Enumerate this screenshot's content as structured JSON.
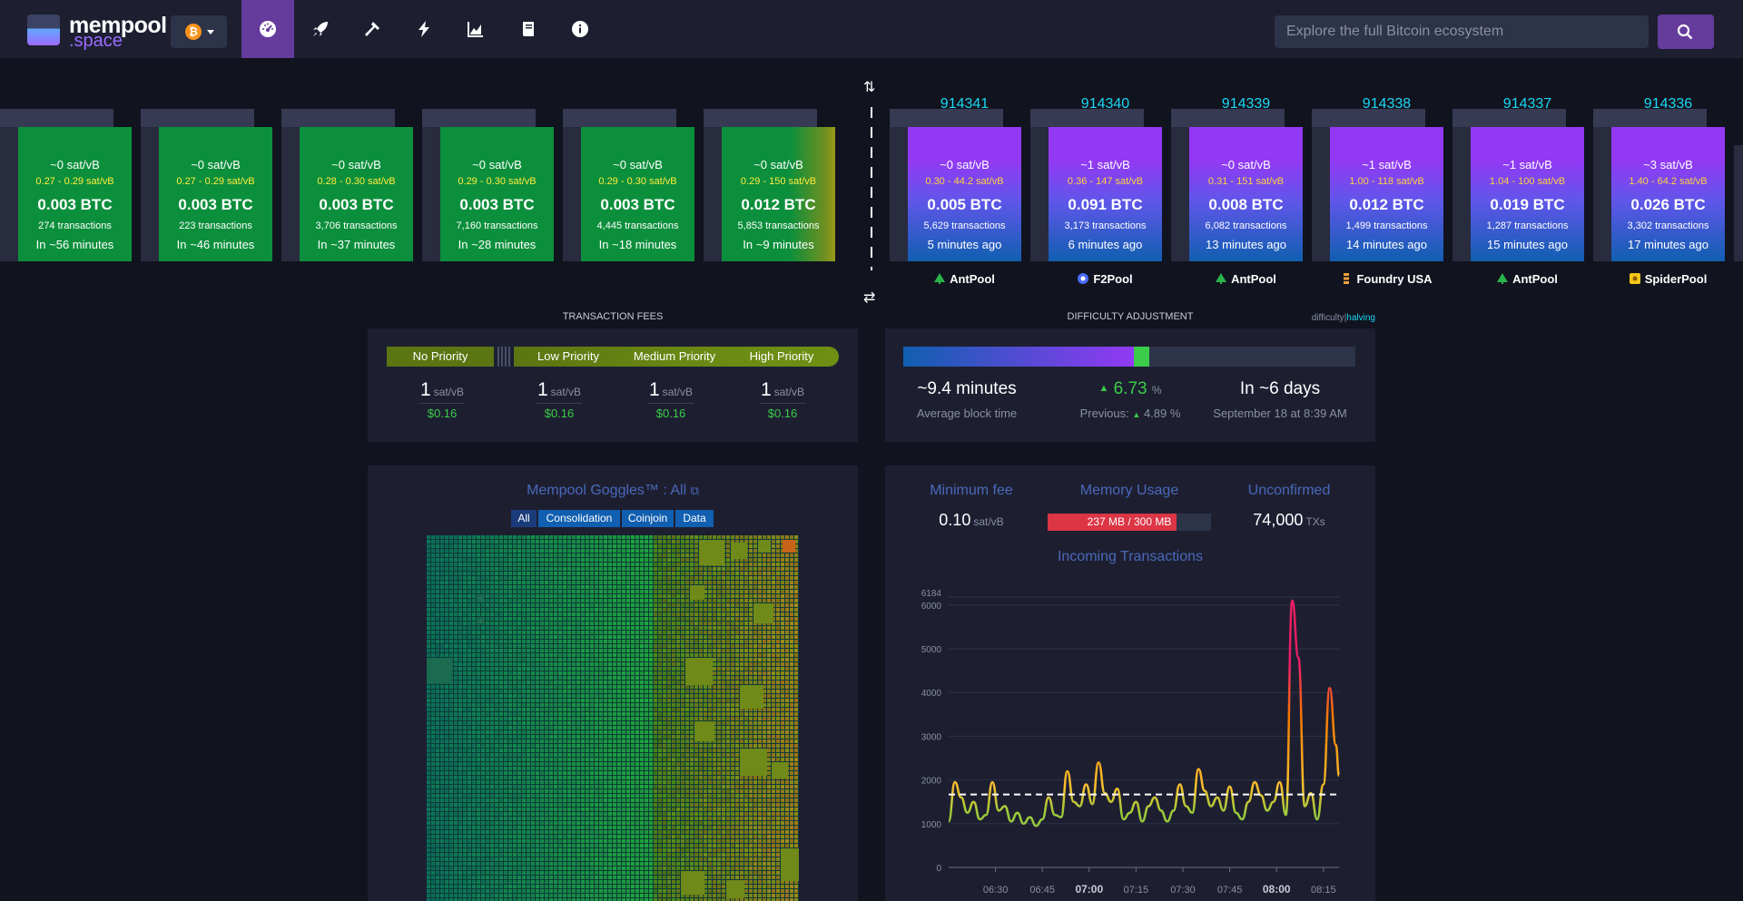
{
  "nav": {
    "logo_line1": "mempool",
    "logo_line2": ".space",
    "network_icon": "bitcoin-icon",
    "items": [
      "dashboard-icon",
      "rocket-icon",
      "hammer-icon",
      "lightning-icon",
      "chart-icon",
      "docs-icon",
      "info-icon"
    ],
    "search_placeholder": "Explore the full Bitcoin ecosystem"
  },
  "pending_blocks": [
    {
      "fee": "~0 sat/vB",
      "range": "0.27 - 0.29 sat/vB",
      "size": "0.003 BTC",
      "tx": "274 transactions",
      "time": "In ~56 minutes"
    },
    {
      "fee": "~0 sat/vB",
      "range": "0.27 - 0.29 sat/vB",
      "size": "0.003 BTC",
      "tx": "223 transactions",
      "time": "In ~46 minutes"
    },
    {
      "fee": "~0 sat/vB",
      "range": "0.28 - 0.30 sat/vB",
      "size": "0.003 BTC",
      "tx": "3,706 transactions",
      "time": "In ~37 minutes"
    },
    {
      "fee": "~0 sat/vB",
      "range": "0.29 - 0.30 sat/vB",
      "size": "0.003 BTC",
      "tx": "7,160 transactions",
      "time": "In ~28 minutes"
    },
    {
      "fee": "~0 sat/vB",
      "range": "0.29 - 0.30 sat/vB",
      "size": "0.003 BTC",
      "tx": "4,445 transactions",
      "time": "In ~18 minutes"
    },
    {
      "fee": "~0 sat/vB",
      "range": "0.29 - 150 sat/vB",
      "size": "0.012 BTC",
      "tx": "5,853 transactions",
      "time": "In ~9 minutes"
    }
  ],
  "mined_blocks": [
    {
      "height": "914341",
      "fee": "~0 sat/vB",
      "range": "0.30 - 44.2 sat/vB",
      "size": "0.005 BTC",
      "tx": "5,629 transactions",
      "time": "5 minutes ago",
      "pool": "AntPool",
      "pool_color": "#2ab44a"
    },
    {
      "height": "914340",
      "fee": "~1 sat/vB",
      "range": "0.36 - 147 sat/vB",
      "size": "0.091 BTC",
      "tx": "3,173 transactions",
      "time": "6 minutes ago",
      "pool": "F2Pool",
      "pool_color": "#4a6cf7"
    },
    {
      "height": "914339",
      "fee": "~0 sat/vB",
      "range": "0.31 - 151 sat/vB",
      "size": "0.008 BTC",
      "tx": "6,082 transactions",
      "time": "13 minutes ago",
      "pool": "AntPool",
      "pool_color": "#2ab44a"
    },
    {
      "height": "914338",
      "fee": "~1 sat/vB",
      "range": "1.00 - 118 sat/vB",
      "size": "0.012 BTC",
      "tx": "1,499 transactions",
      "time": "14 minutes ago",
      "pool": "Foundry USA",
      "pool_color": "#f2a33a"
    },
    {
      "height": "914337",
      "fee": "~1 sat/vB",
      "range": "1.04 - 100 sat/vB",
      "size": "0.019 BTC",
      "tx": "1,287 transactions",
      "time": "15 minutes ago",
      "pool": "AntPool",
      "pool_color": "#2ab44a"
    },
    {
      "height": "914336",
      "fee": "~3 sat/vB",
      "range": "1.40 - 64.2 sat/vB",
      "size": "0.026 BTC",
      "tx": "3,302 transactions",
      "time": "17 minutes ago",
      "pool": "SpiderPool",
      "pool_color": "#f5c518"
    }
  ],
  "fees": {
    "title": "TRANSACTION FEES",
    "labels": {
      "none": "No Priority",
      "low": "Low Priority",
      "medium": "Medium Priority",
      "high": "High Priority"
    },
    "values": [
      {
        "value": "1",
        "unit": "sat/vB",
        "usd": "$0.16"
      },
      {
        "value": "1",
        "unit": "sat/vB",
        "usd": "$0.16"
      },
      {
        "value": "1",
        "unit": "sat/vB",
        "usd": "$0.16"
      },
      {
        "value": "1",
        "unit": "sat/vB",
        "usd": "$0.16"
      }
    ]
  },
  "difficulty": {
    "title": "DIFFICULTY ADJUSTMENT",
    "toggle_a": "difficulty",
    "toggle_sep": "|",
    "toggle_b": "halving",
    "progress_blue_pct": 51,
    "progress_green_pct": 3.5,
    "avg_time": "~9.4 minutes",
    "avg_time_label": "Average block time",
    "change": "6.73",
    "change_unit": "%",
    "previous_label": "Previous:",
    "previous": "4.89",
    "previous_unit": "%",
    "eta": "In ~6 days",
    "eta_date": "September 18 at 8:39 AM"
  },
  "goggles": {
    "title": "Mempool Goggles™ : All",
    "filters": [
      "All",
      "Consolidation",
      "Coinjoin",
      "Data"
    ]
  },
  "stats": {
    "min_fee_title": "Minimum fee",
    "min_fee": "0.10",
    "min_fee_unit": "sat/vB",
    "memory_title": "Memory Usage",
    "memory": "237 MB / 300 MB",
    "memory_fraction": 0.79,
    "unconfirmed_title": "Unconfirmed",
    "unconfirmed": "74,000",
    "unconfirmed_unit": "TXs"
  },
  "chart_data": {
    "type": "line",
    "title": "Incoming Transactions",
    "xlabel": "",
    "ylabel": "",
    "ylim": [
      0,
      6184
    ],
    "y_ticks": [
      "0",
      "1000",
      "2000",
      "3000",
      "4000",
      "5000",
      "6000",
      "6184"
    ],
    "x_ticks": [
      "06:30",
      "06:45",
      "07:00",
      "07:15",
      "07:30",
      "07:45",
      "08:00",
      "08:15"
    ],
    "x_ticks_bold": [
      "07:00",
      "08:00"
    ],
    "x_range_minutes": [
      375,
      500
    ],
    "reference_line": 1667,
    "x": [
      375,
      377,
      379,
      381,
      383,
      385,
      387,
      389,
      391,
      393,
      395,
      397,
      399,
      401,
      403,
      405,
      407,
      409,
      411,
      413,
      415,
      417,
      419,
      421,
      423,
      425,
      427,
      429,
      431,
      433,
      435,
      437,
      439,
      441,
      443,
      445,
      447,
      449,
      451,
      453,
      455,
      457,
      459,
      461,
      463,
      465,
      467,
      469,
      471,
      473,
      475,
      477,
      479,
      481,
      483,
      485,
      487,
      489,
      491,
      493,
      495,
      497,
      499,
      500
    ],
    "values": [
      1050,
      1950,
      1600,
      1250,
      1500,
      1100,
      1200,
      1950,
      1300,
      1400,
      1050,
      1250,
      1000,
      1150,
      950,
      1100,
      1600,
      1200,
      1150,
      2200,
      1500,
      1400,
      1900,
      1450,
      2400,
      1700,
      1500,
      1800,
      1100,
      1250,
      1500,
      1050,
      1400,
      1600,
      1300,
      1050,
      1300,
      1900,
      1400,
      1250,
      2250,
      1750,
      1400,
      1600,
      1300,
      1850,
      1250,
      1100,
      1500,
      1950,
      1650,
      1300,
      1500,
      1950,
      1200,
      6100,
      4800,
      1400,
      1700,
      1100,
      1900,
      4100,
      2800,
      2100
    ]
  }
}
